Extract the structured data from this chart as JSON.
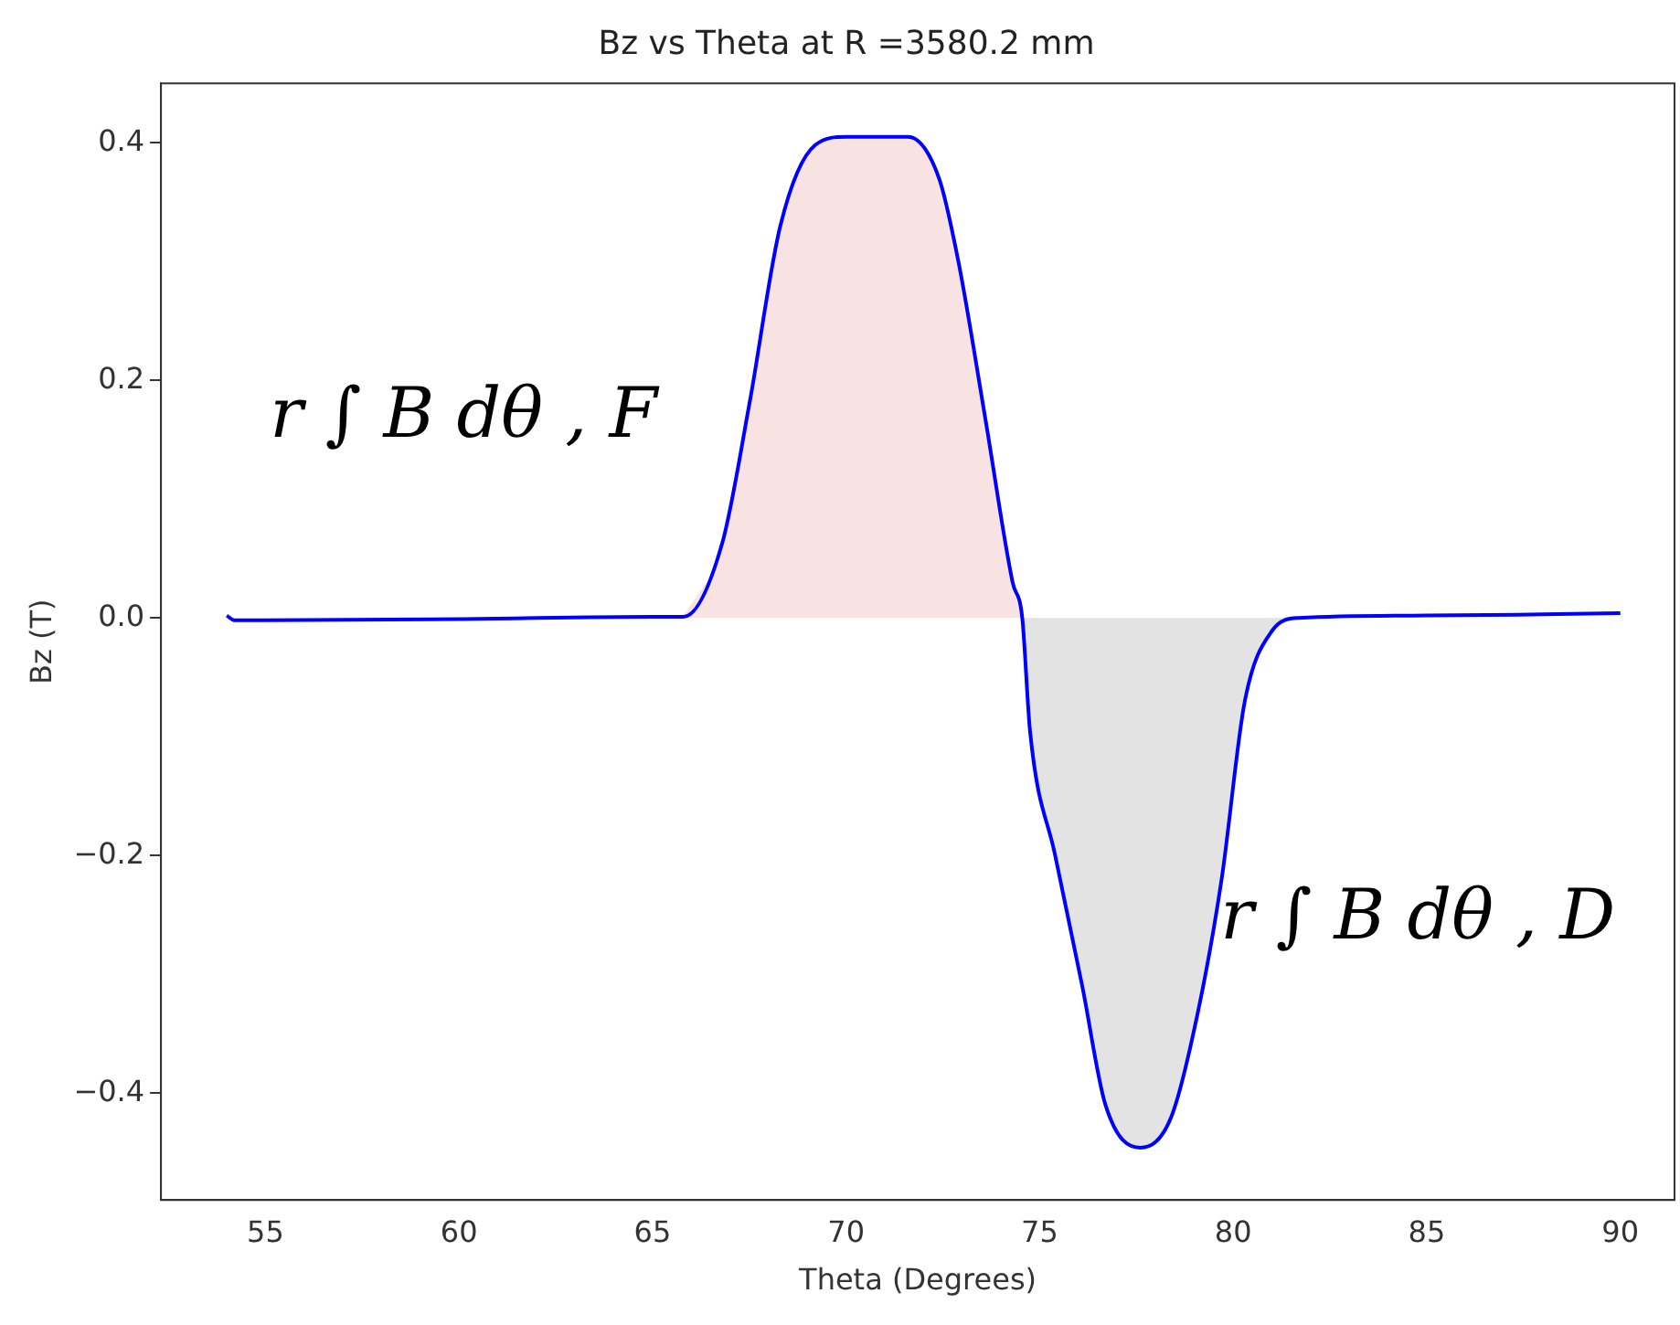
{
  "chart_data": {
    "type": "line",
    "title": "Bz vs Theta at R =3580.2 mm",
    "xlabel": "Theta (Degrees)",
    "ylabel": "Bz (T)",
    "xlim": [
      52.3,
      91.4
    ],
    "xticks": [
      55,
      60,
      65,
      70,
      75,
      80,
      85,
      90
    ],
    "ylim": [
      -0.49,
      0.45
    ],
    "yticks": [
      {
        "value": -0.4,
        "label": "−0.4"
      },
      {
        "value": -0.2,
        "label": "−0.2"
      },
      {
        "value": 0,
        "label": "0.0"
      },
      {
        "value": 0.2,
        "label": "0.2"
      },
      {
        "value": 0.4,
        "label": "0.4"
      }
    ],
    "grid": false,
    "legend": false,
    "marker": "none",
    "line_style": "solid",
    "annotations": [
      "r ∫ B dθ , F",
      "r ∫ B dθ , D"
    ],
    "series": [
      {
        "type": "area",
        "color": "#f9e2e2",
        "x": [
          65.8,
          66.8,
          67.5,
          68.3,
          69.2,
          70.0,
          71.6,
          72.4,
          72.9,
          73.6,
          74.3,
          74.55
        ],
        "values": [
          0.001,
          0.063,
          0.18,
          0.33,
          0.398,
          0.405,
          0.405,
          0.37,
          0.3,
          0.167,
          0.03,
          0
        ]
      },
      {
        "type": "area",
        "color": "#e3e3e3",
        "x": [
          74.55,
          74.75,
          75.4,
          76.1,
          76.7,
          77.6,
          78.4,
          79.1,
          79.7,
          80.3,
          81.0,
          81.7
        ],
        "values": [
          0,
          -0.095,
          -0.2,
          -0.31,
          -0.41,
          -0.446,
          -0.42,
          -0.33,
          -0.22,
          -0.07,
          -0.011,
          0
        ]
      },
      {
        "color": "#0000ff",
        "x": [
          54.0,
          54.2,
          55,
          60,
          65,
          65.8,
          66.8,
          67.5,
          68.3,
          69.2,
          70.0,
          71.6,
          72.4,
          72.9,
          73.6,
          74.3,
          74.55,
          74.75,
          75.4,
          76.1,
          76.7,
          77.6,
          78.4,
          79.1,
          79.7,
          80.3,
          81.0,
          81.7,
          85,
          88,
          90.0
        ],
        "values": [
          0.002,
          -0.002,
          -0.002,
          -0.001,
          0.001,
          0.001,
          0.063,
          0.18,
          0.33,
          0.398,
          0.405,
          0.405,
          0.37,
          0.3,
          0.167,
          0.03,
          0,
          -0.095,
          -0.2,
          -0.31,
          -0.41,
          -0.446,
          -0.42,
          -0.33,
          -0.22,
          -0.07,
          -0.011,
          0,
          0.002,
          0.003,
          0.004
        ]
      }
    ]
  }
}
